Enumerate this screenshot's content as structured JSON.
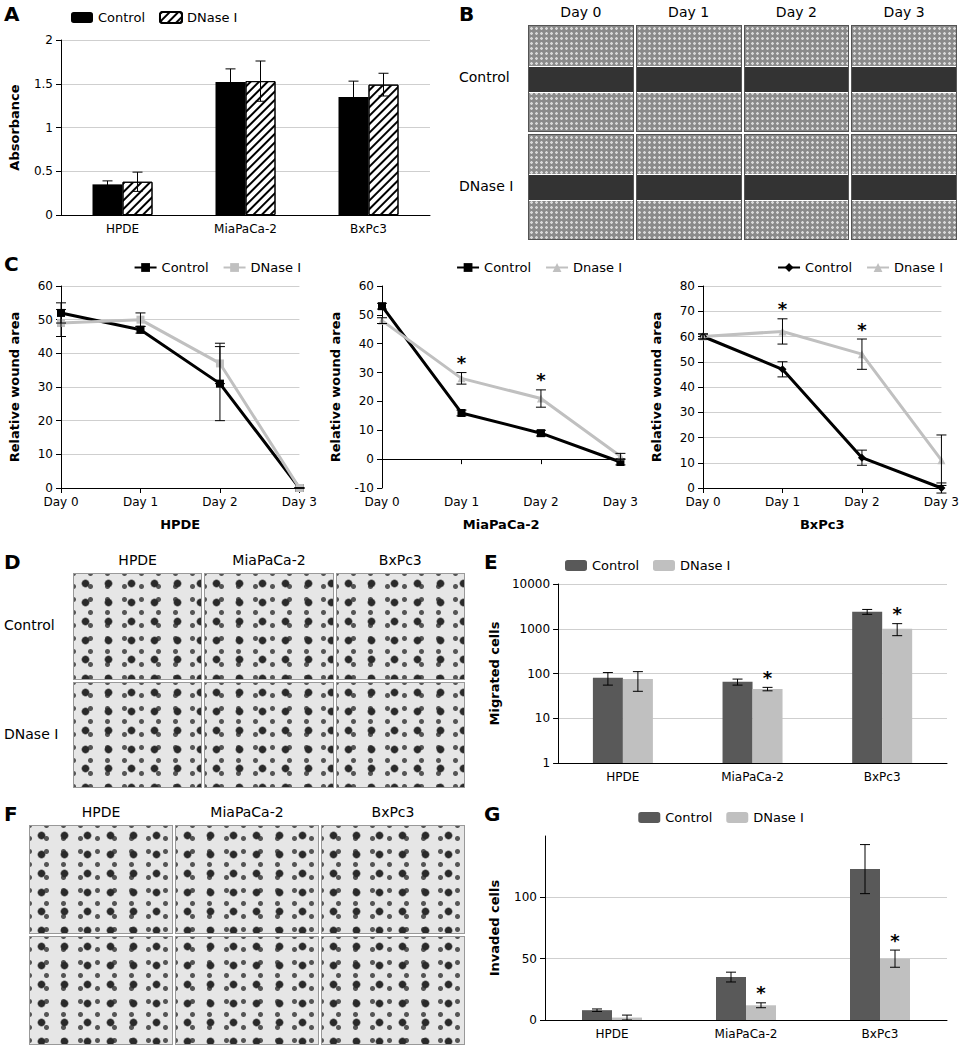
{
  "chart_data": [
    {
      "label": "A",
      "type": "bar",
      "categories": [
        "HPDE",
        "MiaPaCa-2",
        "BxPc3"
      ],
      "series": [
        {
          "name": "Control",
          "color": "#000000",
          "values": [
            0.35,
            1.52,
            1.35
          ],
          "errors": [
            0.04,
            0.15,
            0.18
          ]
        },
        {
          "name": "DNase I",
          "color": "#ffffff",
          "values": [
            0.38,
            1.53,
            1.49
          ],
          "errors": [
            0.11,
            0.23,
            0.13
          ]
        }
      ],
      "ylabel": "Absorbance",
      "ylim": [
        0,
        2
      ],
      "yticks": [
        0,
        0.5,
        1,
        1.5,
        2
      ],
      "grid": true,
      "legend": "top-left"
    },
    {
      "type": "line",
      "categories": [
        "Day 0",
        "Day 1",
        "Day 2",
        "Day 3"
      ],
      "series": [
        {
          "name": "Control",
          "color": "#000000",
          "marker": "square",
          "values": [
            52,
            47,
            31,
            0
          ],
          "errors": [
            3,
            1,
            11,
            0
          ]
        },
        {
          "name": "DNase I",
          "color": "#c0c0c0",
          "marker": "square",
          "values": [
            49,
            50,
            37,
            0
          ],
          "errors": [
            4,
            2,
            6,
            0
          ]
        }
      ],
      "label": "C",
      "xlabel": "HPDE",
      "ylabel": "Relative wound area",
      "ylim": [
        0,
        60
      ],
      "yticks": [
        0,
        10,
        20,
        30,
        40,
        50,
        60
      ],
      "grid": true,
      "legend": "top-right"
    },
    {
      "type": "line",
      "categories": [
        "Day 0",
        "Day 1",
        "Day 2",
        "Day 3"
      ],
      "series": [
        {
          "name": "Control",
          "color": "#000000",
          "marker": "square",
          "values": [
            53,
            16,
            9,
            -1
          ],
          "errors": [
            1,
            1,
            1,
            1
          ]
        },
        {
          "name": "Dnase I",
          "color": "#c0c0c0",
          "marker": "triangle",
          "values": [
            48,
            28,
            21,
            1
          ],
          "errors": [
            1,
            2,
            3,
            1
          ],
          "significance": [
            null,
            "*",
            "*",
            null
          ]
        }
      ],
      "xlabel": "MiaPaCa-2",
      "ylabel": "Relative wound area",
      "ylim": [
        -10,
        60
      ],
      "yticks": [
        -10,
        0,
        10,
        20,
        30,
        40,
        50,
        60
      ],
      "grid": false,
      "legend": "top-right"
    },
    {
      "type": "line",
      "categories": [
        "Day 0",
        "Day 1",
        "Day 2",
        "Day 3"
      ],
      "series": [
        {
          "name": "Control",
          "color": "#000000",
          "marker": "diamond",
          "values": [
            60,
            47,
            12,
            0
          ],
          "errors": [
            1,
            3,
            3,
            2
          ]
        },
        {
          "name": "Dnase I",
          "color": "#c0c0c0",
          "marker": "triangle",
          "values": [
            60,
            62,
            53,
            11
          ],
          "errors": [
            1,
            5,
            6,
            10
          ],
          "significance": [
            null,
            "*",
            "*",
            null
          ]
        }
      ],
      "xlabel": "BxPc3",
      "ylabel": "Relative wound area",
      "ylim": [
        0,
        80
      ],
      "yticks": [
        0,
        10,
        20,
        30,
        40,
        50,
        60,
        70,
        80
      ],
      "grid": true,
      "legend": "top-right"
    },
    {
      "label": "E",
      "type": "bar",
      "log": "y",
      "categories": [
        "HPDE",
        "MiaPaCa-2",
        "BxPc3"
      ],
      "series": [
        {
          "name": "Control",
          "color": "#595959",
          "values": [
            80,
            65,
            2400
          ],
          "errors": [
            25,
            10,
            300
          ]
        },
        {
          "name": "DNase I",
          "color": "#c0c0c0",
          "values": [
            75,
            45,
            1000
          ],
          "errors": [
            35,
            4,
            300
          ],
          "significance": [
            null,
            "*",
            "*"
          ]
        }
      ],
      "ylabel": "Migrated cells",
      "ylim": [
        1,
        10000
      ],
      "yticks": [
        1,
        10,
        100,
        1000,
        10000
      ],
      "grid": true,
      "legend": "top-left"
    },
    {
      "label": "G",
      "type": "bar",
      "categories": [
        "HPDE",
        "MiaPaCa-2",
        "BxPc3"
      ],
      "series": [
        {
          "name": "Control",
          "color": "#595959",
          "values": [
            8,
            35,
            123
          ],
          "errors": [
            1,
            4,
            20
          ]
        },
        {
          "name": "DNase I",
          "color": "#c0c0c0",
          "values": [
            2,
            12,
            50
          ],
          "errors": [
            2,
            2,
            7
          ],
          "significance": [
            null,
            "*",
            "*"
          ]
        }
      ],
      "ylabel": "Invaded cells",
      "ylim": [
        0,
        150
      ],
      "yticks": [
        0,
        50,
        100
      ],
      "grid": true,
      "legend": "top"
    }
  ],
  "images": [
    {
      "label": "B",
      "style": "wound",
      "columns": [
        "Day 0",
        "Day 1",
        "Day 2",
        "Day 3"
      ],
      "rows": [
        "Control",
        "DNase I"
      ]
    },
    {
      "label": "D",
      "style": "stain",
      "columns": [
        "HPDE",
        "MiaPaCa-2",
        "BxPc3"
      ],
      "rows": [
        "Control",
        "DNase I"
      ]
    },
    {
      "label": "F",
      "style": "stain",
      "columns": [
        "HPDE",
        "MiaPaCa-2",
        "BxPc3"
      ],
      "rows": [
        null,
        null
      ]
    }
  ]
}
